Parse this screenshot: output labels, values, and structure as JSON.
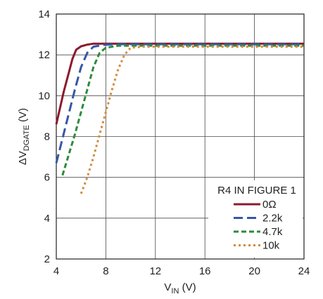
{
  "chart_data": {
    "type": "line",
    "xlabel": {
      "main": "V",
      "sub": "IN",
      "unit": " (V)"
    },
    "ylabel": {
      "main": "ΔV",
      "sub": "DGATE",
      "unit": " (V)"
    },
    "xlim": [
      4,
      24
    ],
    "ylim": [
      2,
      14
    ],
    "xticks": [
      "4",
      "8",
      "12",
      "16",
      "20",
      "24"
    ],
    "yticks": [
      "2",
      "4",
      "6",
      "8",
      "10",
      "12",
      "14"
    ],
    "grid": true,
    "legend_title": "R4 IN FIGURE 1",
    "legend_position": "bottom-right",
    "series": [
      {
        "name": "0Ω",
        "color": "#8b1a2e",
        "dash": "solid",
        "x": [
          4.0,
          4.3,
          4.6,
          5.0,
          5.3,
          5.6,
          6.0,
          6.5,
          7.0,
          8.0,
          24.0
        ],
        "y": [
          8.6,
          9.4,
          10.2,
          11.1,
          11.8,
          12.25,
          12.42,
          12.5,
          12.55,
          12.55,
          12.55
        ]
      },
      {
        "name": "2.2k",
        "color": "#3557a8",
        "dash": "long-dash",
        "x": [
          4.0,
          4.5,
          5.0,
          5.5,
          6.0,
          6.5,
          7.0,
          8.0,
          9.0,
          24.0
        ],
        "y": [
          6.7,
          7.9,
          9.1,
          10.3,
          11.4,
          12.1,
          12.4,
          12.5,
          12.52,
          12.52
        ]
      },
      {
        "name": "4.7k",
        "color": "#2e8a3c",
        "dash": "dash",
        "x": [
          4.5,
          5.0,
          5.5,
          6.0,
          6.5,
          7.0,
          7.5,
          8.0,
          9.0,
          10.0,
          24.0
        ],
        "y": [
          6.1,
          7.1,
          8.1,
          9.2,
          10.3,
          11.4,
          12.1,
          12.35,
          12.45,
          12.45,
          12.45
        ]
      },
      {
        "name": "10k",
        "color": "#d38a3d",
        "dash": "dot",
        "x": [
          6.0,
          6.5,
          7.0,
          7.5,
          8.0,
          8.5,
          9.0,
          9.5,
          10.0,
          11.0,
          24.0
        ],
        "y": [
          5.2,
          6.0,
          7.0,
          8.1,
          9.2,
          10.3,
          11.3,
          12.0,
          12.35,
          12.4,
          12.4
        ]
      }
    ]
  }
}
